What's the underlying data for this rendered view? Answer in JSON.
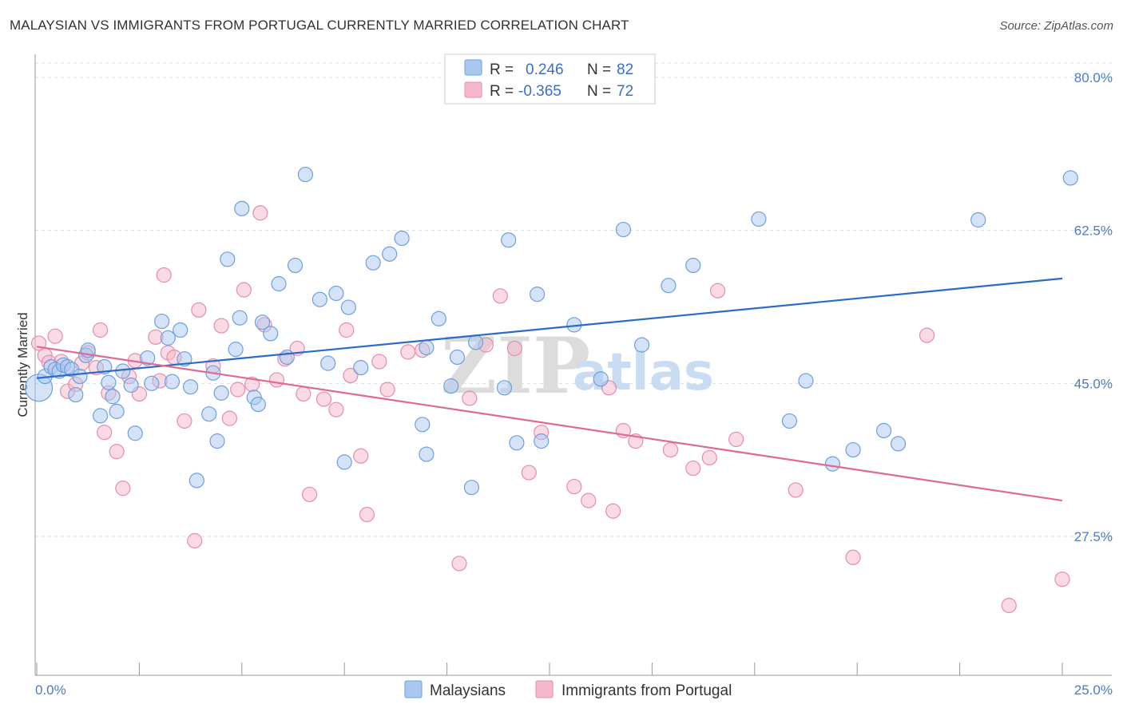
{
  "title": "MALAYSIAN VS IMMIGRANTS FROM PORTUGAL CURRENTLY MARRIED CORRELATION CHART",
  "source": "Source: ZipAtlas.com",
  "watermark": {
    "zip": "ZIP",
    "atlas": "atlas"
  },
  "colors": {
    "blue_fill": "#a9c8ef",
    "blue_stroke": "#6f9fdc",
    "blue_line": "#2b6cc9",
    "pink_fill": "#f5b8cc",
    "pink_stroke": "#e58dab",
    "pink_line": "#e06a95",
    "grid": "#dddddd",
    "axis": "#999999",
    "tick_text": "#4a7cc7"
  },
  "legend": {
    "rows": [
      {
        "r_label": "R =",
        "r_value": "0.246",
        "n_label": "N =",
        "n_value": "82"
      },
      {
        "r_label": "R =",
        "r_value": "-0.365",
        "n_label": "N =",
        "n_value": "72"
      }
    ]
  },
  "bottom_legend": [
    "Malaysians",
    "Immigrants from Portugal"
  ],
  "chart_data": {
    "type": "scatter",
    "title": "MALAYSIAN VS IMMIGRANTS FROM PORTUGAL CURRENTLY MARRIED CORRELATION CHART",
    "xlabel": "",
    "ylabel": "Currently Married",
    "xlim": [
      0,
      25
    ],
    "ylim": [
      10,
      82
    ],
    "x_tick_labels": [
      {
        "value": 0,
        "label": "0.0%"
      },
      {
        "value": 25,
        "label": "25.0%"
      }
    ],
    "y_tick_labels": [
      {
        "value": 80,
        "label": "80.0%"
      },
      {
        "value": 62.5,
        "label": "62.5%"
      },
      {
        "value": 45,
        "label": "45.0%"
      },
      {
        "value": 27.5,
        "label": "27.5%"
      }
    ],
    "series": [
      {
        "name": "Malaysians",
        "r": 0.246,
        "n": 82,
        "trend": [
          [
            0,
            45.6
          ],
          [
            25,
            57.0
          ]
        ],
        "points": [
          [
            0.05,
            44.5
          ],
          [
            0.2,
            45.8
          ],
          [
            0.35,
            46.9
          ],
          [
            0.45,
            46.6
          ],
          [
            0.55,
            46.4
          ],
          [
            0.65,
            47.1
          ],
          [
            0.75,
            46.9
          ],
          [
            0.85,
            46.6
          ],
          [
            0.95,
            43.7
          ],
          [
            1.05,
            45.8
          ],
          [
            1.2,
            48.2
          ],
          [
            1.25,
            48.8
          ],
          [
            1.55,
            41.3
          ],
          [
            1.75,
            45.1
          ],
          [
            1.65,
            46.9
          ],
          [
            1.85,
            43.5
          ],
          [
            1.95,
            41.8
          ],
          [
            2.1,
            46.4
          ],
          [
            2.3,
            44.8
          ],
          [
            2.4,
            39.3
          ],
          [
            2.7,
            47.9
          ],
          [
            2.8,
            45.0
          ],
          [
            3.05,
            52.1
          ],
          [
            3.2,
            50.2
          ],
          [
            3.3,
            45.2
          ],
          [
            3.5,
            51.1
          ],
          [
            3.6,
            47.8
          ],
          [
            3.75,
            44.6
          ],
          [
            3.9,
            33.9
          ],
          [
            4.2,
            41.5
          ],
          [
            4.3,
            46.2
          ],
          [
            4.4,
            38.4
          ],
          [
            4.5,
            43.9
          ],
          [
            4.65,
            59.2
          ],
          [
            4.85,
            48.9
          ],
          [
            4.95,
            52.5
          ],
          [
            5.0,
            65.0
          ],
          [
            5.3,
            43.4
          ],
          [
            5.4,
            42.6
          ],
          [
            5.5,
            52.0
          ],
          [
            5.7,
            50.7
          ],
          [
            5.9,
            56.4
          ],
          [
            6.1,
            48.0
          ],
          [
            6.3,
            58.5
          ],
          [
            6.55,
            68.9
          ],
          [
            6.9,
            54.6
          ],
          [
            7.1,
            47.3
          ],
          [
            7.3,
            55.3
          ],
          [
            7.5,
            36.0
          ],
          [
            7.6,
            53.7
          ],
          [
            7.9,
            46.8
          ],
          [
            8.2,
            58.8
          ],
          [
            8.6,
            59.8
          ],
          [
            8.9,
            61.6
          ],
          [
            9.4,
            40.3
          ],
          [
            9.5,
            36.9
          ],
          [
            9.5,
            49.1
          ],
          [
            9.8,
            52.4
          ],
          [
            10.1,
            44.7
          ],
          [
            10.25,
            48.0
          ],
          [
            10.6,
            33.1
          ],
          [
            10.7,
            49.7
          ],
          [
            11.4,
            44.5
          ],
          [
            11.5,
            61.4
          ],
          [
            11.7,
            38.2
          ],
          [
            12.3,
            38.4
          ],
          [
            12.2,
            55.2
          ],
          [
            13.1,
            51.7
          ],
          [
            13.75,
            45.5
          ],
          [
            14.3,
            62.6
          ],
          [
            14.75,
            49.4
          ],
          [
            15.4,
            56.2
          ],
          [
            16.0,
            58.5
          ],
          [
            17.6,
            63.8
          ],
          [
            18.35,
            40.7
          ],
          [
            18.75,
            45.3
          ],
          [
            19.4,
            35.8
          ],
          [
            19.9,
            37.4
          ],
          [
            21.0,
            38.1
          ],
          [
            20.65,
            39.6
          ],
          [
            22.95,
            63.7
          ],
          [
            25.2,
            68.5
          ]
        ]
      },
      {
        "name": "Immigrants from Portugal",
        "r": -0.365,
        "n": 72,
        "trend": [
          [
            0,
            49.2
          ],
          [
            25,
            31.6
          ]
        ],
        "points": [
          [
            0.05,
            49.6
          ],
          [
            0.2,
            48.2
          ],
          [
            0.3,
            47.4
          ],
          [
            0.45,
            50.4
          ],
          [
            0.6,
            47.5
          ],
          [
            0.75,
            44.1
          ],
          [
            0.95,
            44.9
          ],
          [
            1.1,
            47.3
          ],
          [
            1.25,
            48.5
          ],
          [
            1.45,
            46.8
          ],
          [
            1.55,
            51.1
          ],
          [
            1.65,
            39.4
          ],
          [
            1.75,
            43.9
          ],
          [
            1.95,
            37.2
          ],
          [
            2.1,
            33.0
          ],
          [
            2.25,
            45.8
          ],
          [
            2.4,
            47.6
          ],
          [
            2.5,
            43.8
          ],
          [
            2.9,
            50.3
          ],
          [
            3.0,
            45.3
          ],
          [
            3.1,
            57.4
          ],
          [
            3.2,
            48.5
          ],
          [
            3.35,
            48.0
          ],
          [
            3.6,
            40.7
          ],
          [
            3.85,
            27.0
          ],
          [
            3.95,
            53.4
          ],
          [
            4.3,
            47.0
          ],
          [
            4.5,
            51.6
          ],
          [
            4.7,
            41.0
          ],
          [
            4.9,
            44.3
          ],
          [
            5.05,
            55.7
          ],
          [
            5.25,
            44.9
          ],
          [
            5.45,
            64.5
          ],
          [
            5.55,
            51.7
          ],
          [
            5.85,
            45.4
          ],
          [
            6.05,
            47.8
          ],
          [
            6.35,
            49.0
          ],
          [
            6.5,
            43.8
          ],
          [
            6.65,
            32.3
          ],
          [
            7.0,
            43.2
          ],
          [
            7.3,
            42.0
          ],
          [
            7.55,
            51.1
          ],
          [
            7.65,
            45.9
          ],
          [
            7.9,
            36.7
          ],
          [
            8.05,
            30.0
          ],
          [
            8.35,
            47.5
          ],
          [
            8.55,
            44.3
          ],
          [
            9.05,
            48.6
          ],
          [
            9.4,
            48.8
          ],
          [
            10.3,
            24.4
          ],
          [
            10.55,
            43.3
          ],
          [
            10.95,
            49.4
          ],
          [
            11.3,
            55.0
          ],
          [
            11.65,
            49.0
          ],
          [
            12.0,
            34.8
          ],
          [
            12.3,
            39.4
          ],
          [
            13.1,
            33.2
          ],
          [
            13.45,
            31.6
          ],
          [
            13.95,
            44.5
          ],
          [
            14.05,
            30.4
          ],
          [
            14.3,
            39.6
          ],
          [
            14.6,
            38.4
          ],
          [
            15.45,
            37.4
          ],
          [
            16.0,
            35.3
          ],
          [
            16.4,
            36.5
          ],
          [
            16.6,
            55.6
          ],
          [
            17.05,
            38.6
          ],
          [
            18.5,
            32.8
          ],
          [
            19.9,
            25.1
          ],
          [
            21.7,
            50.5
          ],
          [
            23.7,
            19.6
          ],
          [
            25.0,
            22.6
          ]
        ]
      }
    ]
  }
}
